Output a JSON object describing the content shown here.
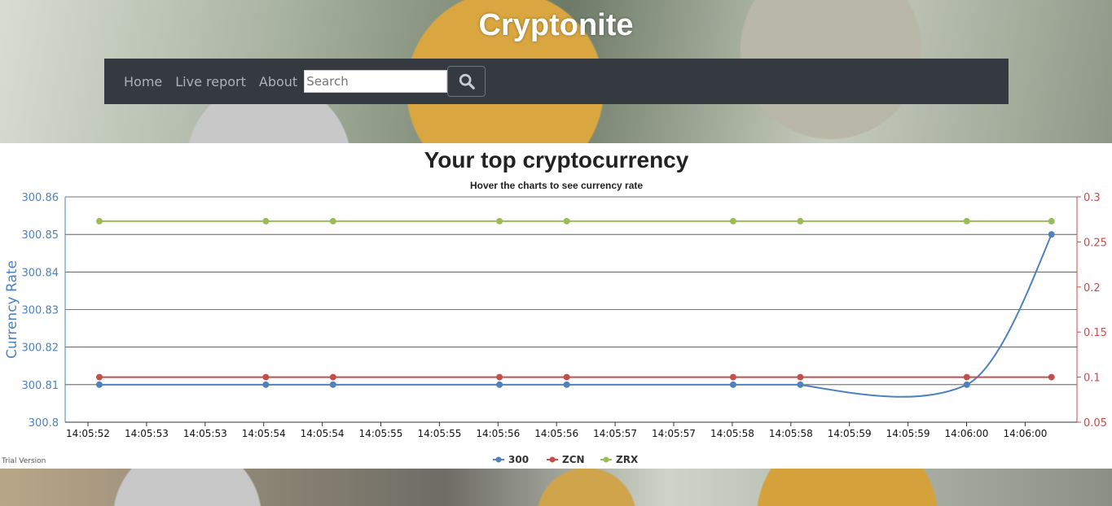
{
  "site": {
    "title": "Cryptonite"
  },
  "nav": {
    "items": [
      "Home",
      "Live report",
      "About"
    ],
    "search_placeholder": "Search",
    "search_icon": "search-icon"
  },
  "chart_data": {
    "type": "line",
    "title": "Your top cryptocurrency",
    "subtitle": "Hover the charts to see currency rate",
    "ylabel": "Currency Rate",
    "ylim": [
      300.8,
      300.86
    ],
    "yticks": [
      "300.86",
      "300.85",
      "300.84",
      "300.83",
      "300.82",
      "300.81",
      "300.8"
    ],
    "y2lim": [
      0.05,
      0.3
    ],
    "y2ticks": [
      "0.3",
      "0.25",
      "0.2",
      "0.15",
      "0.1",
      "0.05"
    ],
    "xticks": [
      "14:05:52",
      "14:05:53",
      "14:05:53",
      "14:05:54",
      "14:05:54",
      "14:05:55",
      "14:05:55",
      "14:05:56",
      "14:05:56",
      "14:05:57",
      "14:05:57",
      "14:05:58",
      "14:05:58",
      "14:05:59",
      "14:05:59",
      "14:06:00",
      "14:06:00"
    ],
    "x_index": [
      0,
      2.85,
      4,
      6.85,
      8,
      10.85,
      12,
      14.85,
      16.3
    ],
    "grid": true,
    "legend_position": "bottom-center",
    "series": [
      {
        "name": "300",
        "axis": "left",
        "color": "#4f81bc",
        "values": [
          300.81,
          300.81,
          300.81,
          300.81,
          300.81,
          300.81,
          300.81,
          300.81,
          300.85
        ]
      },
      {
        "name": "ZCN",
        "axis": "right",
        "color": "#c0504e",
        "values": [
          0.1,
          0.1,
          0.1,
          0.1,
          0.1,
          0.1,
          0.1,
          0.1,
          0.1
        ]
      },
      {
        "name": "ZRX",
        "axis": "right",
        "color": "#9bbb58",
        "values": [
          0.273,
          0.273,
          0.273,
          0.273,
          0.273,
          0.273,
          0.273,
          0.273,
          0.273
        ]
      }
    ]
  },
  "footer": {
    "trial_text": "Trial Version"
  }
}
